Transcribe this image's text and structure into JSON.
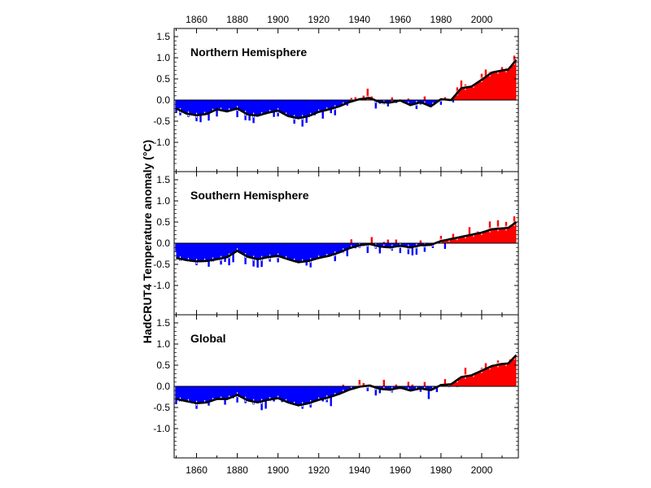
{
  "chart_data": {
    "type": "bar",
    "ylabel": "HadCRUT4  Temperature anomaly (°C)",
    "colors": {
      "positive": "#ff0000",
      "negative": "#0000ff",
      "smoothed": "#000000"
    },
    "x_ticks": [
      1860,
      1880,
      1900,
      1920,
      1940,
      1960,
      1980,
      2000
    ],
    "xlim": [
      1849,
      2018
    ],
    "grid": false,
    "panels": [
      {
        "title": "Northern Hemisphere",
        "ylim": [
          -1.5,
          1.7
        ],
        "y_ticks": [
          "1.5",
          "1.0",
          "0.5",
          "0.0",
          "-0.5",
          "-1.0"
        ],
        "smooth_points": [
          [
            1850,
            -0.2
          ],
          [
            1855,
            -0.32
          ],
          [
            1860,
            -0.36
          ],
          [
            1865,
            -0.33
          ],
          [
            1870,
            -0.22
          ],
          [
            1875,
            -0.27
          ],
          [
            1880,
            -0.2
          ],
          [
            1885,
            -0.34
          ],
          [
            1890,
            -0.37
          ],
          [
            1895,
            -0.3
          ],
          [
            1900,
            -0.25
          ],
          [
            1905,
            -0.38
          ],
          [
            1910,
            -0.43
          ],
          [
            1915,
            -0.38
          ],
          [
            1920,
            -0.28
          ],
          [
            1925,
            -0.22
          ],
          [
            1930,
            -0.15
          ],
          [
            1935,
            -0.05
          ],
          [
            1940,
            0.02
          ],
          [
            1945,
            0.05
          ],
          [
            1950,
            -0.05
          ],
          [
            1955,
            -0.06
          ],
          [
            1960,
            -0.01
          ],
          [
            1965,
            -0.12
          ],
          [
            1970,
            -0.05
          ],
          [
            1975,
            -0.15
          ],
          [
            1980,
            0.02
          ],
          [
            1985,
            0.0
          ],
          [
            1990,
            0.28
          ],
          [
            1995,
            0.32
          ],
          [
            2000,
            0.48
          ],
          [
            2005,
            0.65
          ],
          [
            2010,
            0.7
          ],
          [
            2013,
            0.72
          ],
          [
            2017,
            0.95
          ]
        ]
      },
      {
        "title": "Southern Hemisphere",
        "ylim": [
          -1.5,
          1.7
        ],
        "y_ticks": [
          "1.5",
          "1.0",
          "0.5",
          "0.0",
          "-0.5",
          "-1.0"
        ],
        "smooth_points": [
          [
            1850,
            -0.35
          ],
          [
            1855,
            -0.4
          ],
          [
            1860,
            -0.43
          ],
          [
            1865,
            -0.42
          ],
          [
            1870,
            -0.38
          ],
          [
            1875,
            -0.33
          ],
          [
            1880,
            -0.18
          ],
          [
            1885,
            -0.32
          ],
          [
            1890,
            -0.38
          ],
          [
            1895,
            -0.33
          ],
          [
            1900,
            -0.3
          ],
          [
            1905,
            -0.38
          ],
          [
            1910,
            -0.45
          ],
          [
            1915,
            -0.42
          ],
          [
            1920,
            -0.35
          ],
          [
            1925,
            -0.3
          ],
          [
            1930,
            -0.22
          ],
          [
            1935,
            -0.12
          ],
          [
            1940,
            -0.05
          ],
          [
            1945,
            -0.02
          ],
          [
            1950,
            -0.08
          ],
          [
            1955,
            -0.1
          ],
          [
            1960,
            -0.06
          ],
          [
            1965,
            -0.1
          ],
          [
            1970,
            -0.05
          ],
          [
            1975,
            -0.04
          ],
          [
            1980,
            0.05
          ],
          [
            1985,
            0.1
          ],
          [
            1990,
            0.15
          ],
          [
            1995,
            0.2
          ],
          [
            2000,
            0.25
          ],
          [
            2005,
            0.33
          ],
          [
            2010,
            0.35
          ],
          [
            2013,
            0.36
          ],
          [
            2017,
            0.5
          ]
        ]
      },
      {
        "title": "Global",
        "ylim": [
          -1.5,
          1.7
        ],
        "y_ticks": [
          "1.5",
          "1.0",
          "0.5",
          "0.0",
          "-0.5",
          "-1.0"
        ],
        "smooth_points": [
          [
            1850,
            -0.3
          ],
          [
            1855,
            -0.35
          ],
          [
            1860,
            -0.4
          ],
          [
            1865,
            -0.38
          ],
          [
            1870,
            -0.3
          ],
          [
            1875,
            -0.3
          ],
          [
            1880,
            -0.2
          ],
          [
            1885,
            -0.33
          ],
          [
            1890,
            -0.38
          ],
          [
            1895,
            -0.32
          ],
          [
            1900,
            -0.28
          ],
          [
            1905,
            -0.38
          ],
          [
            1910,
            -0.45
          ],
          [
            1915,
            -0.4
          ],
          [
            1920,
            -0.32
          ],
          [
            1925,
            -0.26
          ],
          [
            1930,
            -0.18
          ],
          [
            1935,
            -0.08
          ],
          [
            1940,
            -0.01
          ],
          [
            1945,
            0.02
          ],
          [
            1950,
            -0.06
          ],
          [
            1955,
            -0.08
          ],
          [
            1960,
            -0.03
          ],
          [
            1965,
            -0.1
          ],
          [
            1970,
            -0.05
          ],
          [
            1975,
            -0.09
          ],
          [
            1980,
            0.03
          ],
          [
            1985,
            0.05
          ],
          [
            1990,
            0.22
          ],
          [
            1995,
            0.26
          ],
          [
            2000,
            0.37
          ],
          [
            2005,
            0.48
          ],
          [
            2010,
            0.53
          ],
          [
            2013,
            0.54
          ],
          [
            2017,
            0.74
          ]
        ]
      }
    ]
  }
}
